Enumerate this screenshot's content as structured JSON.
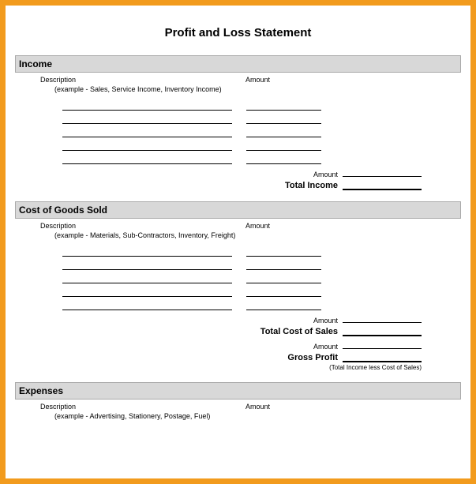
{
  "title": "Profit and Loss Statement",
  "generic": {
    "description_label": "Description",
    "amount_label": "Amount"
  },
  "income": {
    "header": "Income",
    "example": "(example - Sales, Service Income, Inventory Income)",
    "subtotal_label": "Amount",
    "total_label": "Total Income"
  },
  "cogs": {
    "header": "Cost of Goods Sold",
    "example": "(example - Materials, Sub-Contractors, Inventory, Freight)",
    "subtotal_label": "Amount",
    "total_label": "Total Cost of Sales"
  },
  "gross_profit": {
    "subtotal_label": "Amount",
    "label": "Gross Profit",
    "explain": "(Total Income less Cost of Sales)"
  },
  "expenses": {
    "header": "Expenses",
    "example": "(example - Advertising, Stationery, Postage, Fuel)"
  },
  "style": {
    "frame_color": "#f29b1d",
    "section_bg": "#d8d8d8",
    "line_rows": 5
  }
}
